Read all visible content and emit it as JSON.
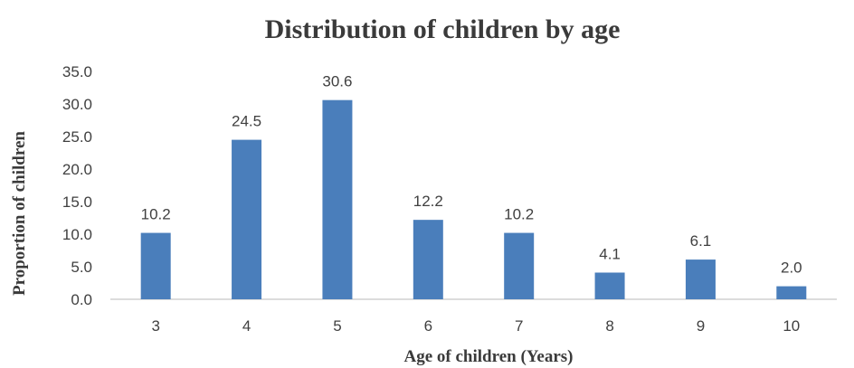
{
  "chart_data": {
    "type": "bar",
    "title": "Distribution of children by age",
    "xlabel": "Age of children (Years)",
    "ylabel": "Proportion  of children",
    "categories": [
      "3",
      "4",
      "5",
      "6",
      "7",
      "8",
      "9",
      "10"
    ],
    "values": [
      10.2,
      24.5,
      30.6,
      12.2,
      10.2,
      4.1,
      6.1,
      2.0
    ],
    "data_labels": [
      "10.2",
      "24.5",
      "30.6",
      "12.2",
      "10.2",
      "4.1",
      "6.1",
      "2.0"
    ],
    "yticks": [
      "0.0",
      "5.0",
      "10.0",
      "15.0",
      "20.0",
      "25.0",
      "30.0",
      "35.0"
    ],
    "ylim": [
      0,
      35
    ],
    "grid": false,
    "legend": "none",
    "bar_color": "#4a7ebb",
    "text_color": "#404040"
  }
}
